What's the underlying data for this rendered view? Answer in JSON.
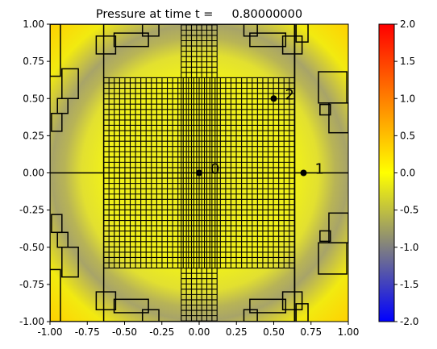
{
  "chart_data": {
    "type": "heatmap",
    "title": "Pressure at time t =     0.80000000",
    "xlabel": "",
    "ylabel": "",
    "xlim": [
      -1.0,
      1.0
    ],
    "ylim": [
      -1.0,
      1.0
    ],
    "x_ticks": [
      "-1.00",
      "-0.75",
      "-0.50",
      "-0.25",
      "0.00",
      "0.25",
      "0.50",
      "0.75",
      "1.00"
    ],
    "y_ticks": [
      "-1.00",
      "-0.75",
      "-0.50",
      "-0.25",
      "0.00",
      "0.25",
      "0.50",
      "0.75",
      "1.00"
    ],
    "x_tick_values": [
      -1.0,
      -0.75,
      -0.5,
      -0.25,
      0.0,
      0.25,
      0.5,
      0.75,
      1.0
    ],
    "y_tick_values": [
      -1.0,
      -0.75,
      -0.5,
      -0.25,
      0.0,
      0.25,
      0.5,
      0.75,
      1.0
    ],
    "colorbar": {
      "min": -2.0,
      "max": 2.0,
      "ticks": [
        "-2.0",
        "-1.5",
        "-1.0",
        "-0.5",
        "0.0",
        "0.5",
        "1.0",
        "1.5",
        "2.0"
      ],
      "tick_values": [
        -2.0,
        -1.5,
        -1.0,
        -0.5,
        0.0,
        0.5,
        1.0,
        1.5,
        2.0
      ],
      "colors": [
        "#0000ff",
        "#808080",
        "#ffff00",
        "#ff0000"
      ]
    },
    "gauges": [
      {
        "label": "0",
        "x": 0.0,
        "y": 0.0
      },
      {
        "label": "1",
        "x": 0.7,
        "y": 0.0
      },
      {
        "label": "2",
        "x": 0.5,
        "y": 0.5
      }
    ],
    "grid": false
  }
}
